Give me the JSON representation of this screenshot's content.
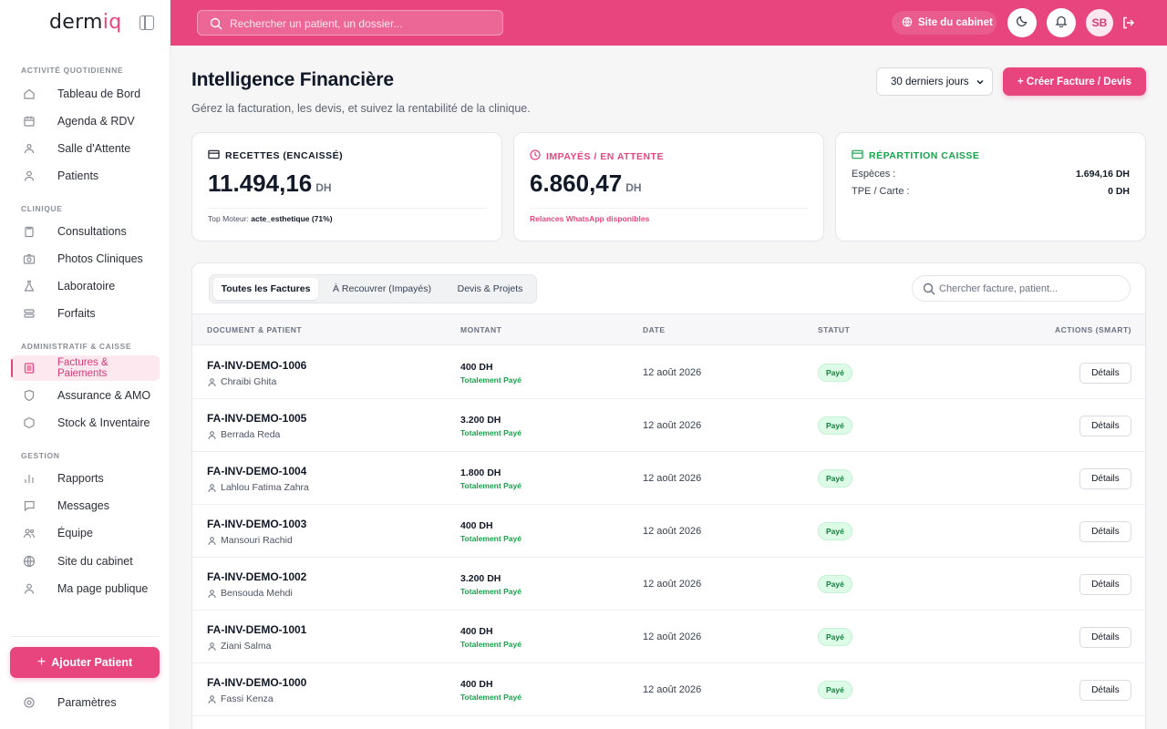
{
  "brand": {
    "name_main": "derm",
    "name_accent": "iq"
  },
  "sidebar": {
    "sections": [
      {
        "title": "ACTIVITÉ QUOTIDIENNE"
      },
      {
        "title": "CLINIQUE"
      },
      {
        "title": "ADMINISTRATIF & CAISSE"
      },
      {
        "title": "GESTION"
      }
    ],
    "items": [
      {
        "label": "Tableau de Bord",
        "icon": "home-icon"
      },
      {
        "label": "Agenda & RDV",
        "icon": "calendar-icon"
      },
      {
        "label": "Salle d'Attente",
        "icon": "waiting-room-icon"
      },
      {
        "label": "Patients",
        "icon": "user-icon"
      },
      {
        "label": "Consultations",
        "icon": "clipboard-icon"
      },
      {
        "label": "Photos Cliniques",
        "icon": "camera-icon"
      },
      {
        "label": "Laboratoire",
        "icon": "flask-icon"
      },
      {
        "label": "Forfaits",
        "icon": "layers-icon"
      },
      {
        "label": "Factures & Paiements",
        "icon": "receipt-icon",
        "active": true
      },
      {
        "label": "Assurance & AMO",
        "icon": "shield-icon"
      },
      {
        "label": "Stock & Inventaire",
        "icon": "box-icon"
      },
      {
        "label": "Rapports",
        "icon": "bar-chart-icon"
      },
      {
        "label": "Messages",
        "icon": "message-icon"
      },
      {
        "label": "Équipe",
        "icon": "team-icon"
      },
      {
        "label": "Site du cabinet",
        "icon": "globe-icon"
      },
      {
        "label": "Ma page publique",
        "icon": "user-icon"
      }
    ],
    "add_patient_label": "Ajouter Patient",
    "settings_label": "Paramètres"
  },
  "topbar": {
    "search_placeholder": "Rechercher un patient, un dossier...",
    "site_label": "Site du cabinet",
    "avatar_initials": "SB"
  },
  "header": {
    "title": "Intelligence Financière",
    "subtitle": "Gérez la facturation, les devis, et suivez la rentabilité de la clinique.",
    "period": "30 derniers jours",
    "create_label": "+ Créer Facture / Devis"
  },
  "stats": {
    "recettes": {
      "title": "RECETTES (ENCAISSÉ)",
      "value": "11.494,16",
      "unit": "DH",
      "foot_label": "Top Moteur:",
      "foot_value": "acte_esthetique (71%)"
    },
    "impayes": {
      "title": "IMPAYÉS / EN ATTENTE",
      "value": "6.860,47",
      "unit": "DH",
      "foot": "Relances WhatsApp disponibles"
    },
    "repartition": {
      "title": "RÉPARTITION CAISSE",
      "rows": [
        {
          "label": "Espèces :",
          "value": "1.694,16 DH"
        },
        {
          "label": "TPE / Carte :",
          "value": "0 DH"
        }
      ]
    }
  },
  "colors": {
    "accent": "#e8457f",
    "success": "#16a34a",
    "warning": "#e8457f",
    "teal": "#16a34a"
  },
  "table": {
    "tabs": [
      "Toutes les Factures",
      "À Recouvrer (Impayés)",
      "Devis & Projets"
    ],
    "search_placeholder": "Chercher facture, patient...",
    "columns": [
      "DOCUMENT & PATIENT",
      "MONTANT",
      "DATE",
      "STATUT",
      "ACTIONS (SMART)"
    ],
    "rows": [
      {
        "doc": "FA-INV-DEMO-1006",
        "patient": "Chraibi Ghita",
        "amount": "400 DH",
        "amount_status": "Totalement Payé",
        "date": "12 août 2026",
        "status": "Payé",
        "action": "Détails"
      },
      {
        "doc": "FA-INV-DEMO-1005",
        "patient": "Berrada Reda",
        "amount": "3.200 DH",
        "amount_status": "Totalement Payé",
        "date": "12 août 2026",
        "status": "Payé",
        "action": "Détails"
      },
      {
        "doc": "FA-INV-DEMO-1004",
        "patient": "Lahlou Fatima Zahra",
        "amount": "1.800 DH",
        "amount_status": "Totalement Payé",
        "date": "12 août 2026",
        "status": "Payé",
        "action": "Détails"
      },
      {
        "doc": "FA-INV-DEMO-1003",
        "patient": "Mansouri Rachid",
        "amount": "400 DH",
        "amount_status": "Totalement Payé",
        "date": "12 août 2026",
        "status": "Payé",
        "action": "Détails"
      },
      {
        "doc": "FA-INV-DEMO-1002",
        "patient": "Bensouda Mehdi",
        "amount": "3.200 DH",
        "amount_status": "Totalement Payé",
        "date": "12 août 2026",
        "status": "Payé",
        "action": "Détails"
      },
      {
        "doc": "FA-INV-DEMO-1001",
        "patient": "Ziani Salma",
        "amount": "400 DH",
        "amount_status": "Totalement Payé",
        "date": "12 août 2026",
        "status": "Payé",
        "action": "Détails"
      },
      {
        "doc": "FA-INV-DEMO-1000",
        "patient": "Fassi Kenza",
        "amount": "400 DH",
        "amount_status": "Totalement Payé",
        "date": "12 août 2026",
        "status": "Payé",
        "action": "Détails"
      }
    ]
  }
}
